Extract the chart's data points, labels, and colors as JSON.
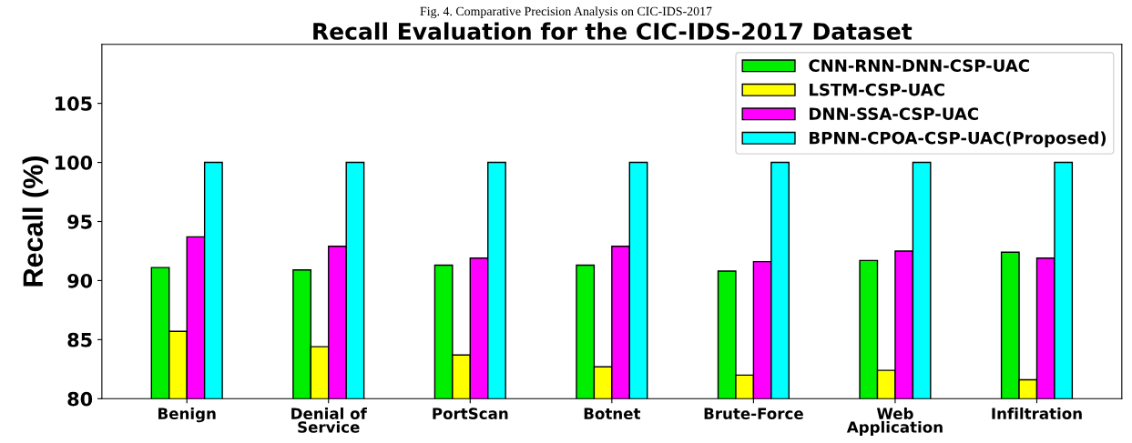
{
  "chart_data": {
    "type": "bar",
    "title": "Recall Evaluation for the CIC-IDS-2017 Dataset",
    "ylabel": "Recall (%)",
    "annotations": [
      "Fig. 4. Comparative Precision Analysis on CIC-IDS-2017"
    ],
    "categories": [
      "Benign",
      "Denial of\nService",
      "PortScan",
      "Botnet",
      "Brute-Force",
      "Web\nApplication",
      "Infiltration"
    ],
    "series": [
      {
        "name": "CNN-RNN-DNN-CSP-UAC",
        "color": "#00ee00",
        "values": [
          91.1,
          90.9,
          91.3,
          91.3,
          90.8,
          91.7,
          92.4
        ]
      },
      {
        "name": "LSTM-CSP-UAC",
        "color": "#ffff00",
        "values": [
          85.7,
          84.4,
          83.7,
          82.7,
          82.0,
          82.4,
          81.6
        ]
      },
      {
        "name": "DNN-SSA-CSP-UAC",
        "color": "#ff00ff",
        "values": [
          93.7,
          92.9,
          91.9,
          92.9,
          91.6,
          92.5,
          91.9
        ]
      },
      {
        "name": "BPNN-CPOA-CSP-UAC(Proposed)",
        "color": "#00ffff",
        "values": [
          100,
          100,
          100,
          100,
          100,
          100,
          100
        ]
      }
    ],
    "ylim": [
      80,
      110
    ],
    "yticks": [
      80,
      85,
      90,
      95,
      100,
      105
    ],
    "grid": false,
    "legend": "top right"
  }
}
